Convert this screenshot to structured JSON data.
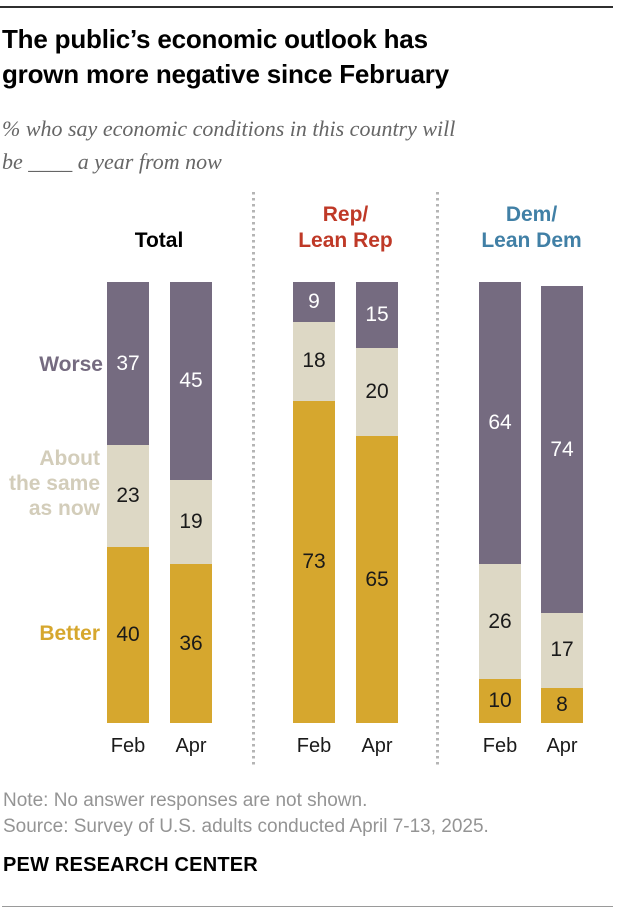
{
  "header": {
    "title": "The public’s economic outlook has\ngrown more negative since February",
    "subtitle": "% who say economic conditions in this country will\nbe ____ a year from now"
  },
  "footer": {
    "note": "Note: No answer responses are not shown.",
    "source": "Source: Survey of U.S. adults conducted April 7-13, 2025.",
    "brand": "PEW RESEARCH CENTER"
  },
  "chart_data": {
    "type": "bar",
    "stacked": true,
    "unit": "%",
    "ylim": [
      0,
      100
    ],
    "grid": false,
    "legend_position": "left-category-labels",
    "segments": [
      {
        "key": "worse",
        "name": "Worse",
        "axis_label": "Worse",
        "color": "#756b80",
        "value_color": "#ffffff"
      },
      {
        "key": "same",
        "name": "About the same as now",
        "axis_label": "About\nthe same\nas now",
        "color": "#ddd8c5",
        "value_color": "#1a1a1a"
      },
      {
        "key": "better",
        "name": "Better",
        "axis_label": "Better",
        "color": "#d6a72e",
        "value_color": "#1a1a1a"
      }
    ],
    "groups": [
      {
        "id": "total",
        "label_top": "",
        "label_bottom": "Total",
        "label_color": "#000000",
        "bars": [
          {
            "x": "Feb",
            "values": [
              37,
              23,
              40
            ]
          },
          {
            "x": "Apr",
            "values": [
              45,
              19,
              36
            ]
          }
        ]
      },
      {
        "id": "rep",
        "label_top": "Rep/",
        "label_bottom": "Lean Rep",
        "label_color": "#bf3927",
        "bars": [
          {
            "x": "Feb",
            "values": [
              9,
              18,
              73
            ]
          },
          {
            "x": "Apr",
            "values": [
              15,
              20,
              65
            ]
          }
        ]
      },
      {
        "id": "dem",
        "label_top": "Dem/",
        "label_bottom": "Lean Dem",
        "label_color": "#4180a6",
        "bars": [
          {
            "x": "Feb",
            "values": [
              64,
              26,
              10
            ]
          },
          {
            "x": "Apr",
            "values": [
              74,
              17,
              8
            ]
          }
        ]
      }
    ]
  }
}
